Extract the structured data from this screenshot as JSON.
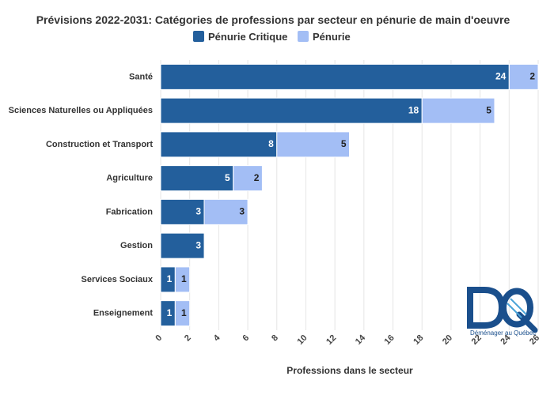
{
  "chart_data": {
    "type": "bar",
    "orientation": "horizontal",
    "stacked": true,
    "title": "Prévisions 2022-2031: Catégories de professions par secteur en pénurie de main d'oeuvre",
    "xlabel": "Professions dans le secteur",
    "ylabel": "",
    "xlim": [
      0,
      26
    ],
    "xticks": [
      0,
      2,
      4,
      6,
      8,
      10,
      12,
      14,
      16,
      18,
      20,
      22,
      24,
      26
    ],
    "grid": true,
    "legend_position": "top-center",
    "categories": [
      "Santé",
      "Sciences Naturelles ou Appliquées",
      "Construction et Transport",
      "Agriculture",
      "Fabrication",
      "Gestion",
      "Services Sociaux",
      "Enseignement"
    ],
    "series": [
      {
        "name": "Pénurie Critique",
        "color": "#235f9c",
        "label_color": "#ffffff",
        "values": [
          24,
          18,
          8,
          5,
          3,
          3,
          1,
          1
        ]
      },
      {
        "name": "Pénurie",
        "color": "#a3bef5",
        "label_color": "#222222",
        "values": [
          2,
          5,
          5,
          2,
          3,
          0,
          1,
          1
        ]
      }
    ]
  },
  "logo": {
    "letters": "DQ",
    "caption": "Déménager au Québec",
    "color": "#1a4f8c"
  }
}
